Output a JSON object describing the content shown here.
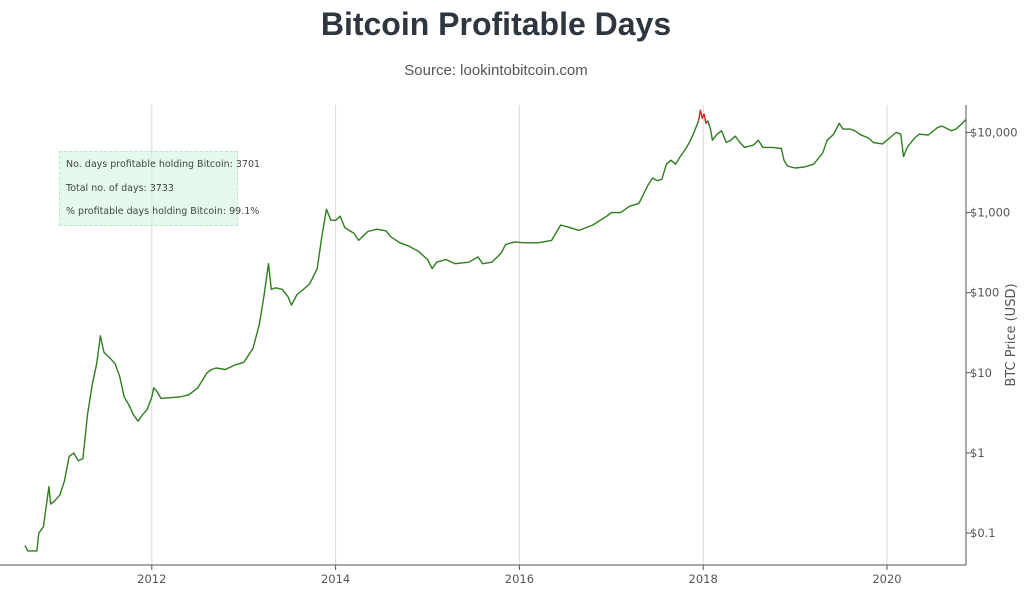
{
  "header": {
    "title": "Bitcoin Profitable Days",
    "subtitle": "Source: lookintobitcoin.com"
  },
  "annotation": {
    "line1": "No. days profitable holding Bitcoin: 3701",
    "line2": "Total no. of days: 3733",
    "line3": "% profitable days holding Bitcoin: 99.1%"
  },
  "colors": {
    "profitable": "#2e7d1f",
    "unprofitable": "#e02020",
    "grid": "#d9d9d9",
    "axis": "#555555"
  },
  "chart_data": {
    "type": "line",
    "title": "Bitcoin Profitable Days",
    "subtitle": "Source: lookintobitcoin.com",
    "xlabel": "",
    "ylabel": "BTC Price (USD)",
    "y_scale": "log",
    "y_axis_position": "right",
    "xlim": [
      2010.62,
      2020.86
    ],
    "ylim": [
      0.04,
      22000
    ],
    "x_ticks": [
      {
        "value": 2012,
        "label": "2012"
      },
      {
        "value": 2014,
        "label": "2014"
      },
      {
        "value": 2016,
        "label": "2016"
      },
      {
        "value": 2018,
        "label": "2018"
      },
      {
        "value": 2020,
        "label": "2020"
      }
    ],
    "y_ticks": [
      {
        "value": 0.1,
        "label": "$0.1"
      },
      {
        "value": 1,
        "label": "$1"
      },
      {
        "value": 10,
        "label": "$10"
      },
      {
        "value": 100,
        "label": "$100"
      },
      {
        "value": 1000,
        "label": "$1,000"
      },
      {
        "value": 10000,
        "label": "$10,000"
      }
    ],
    "grid": "vertical",
    "series": [
      {
        "color_key": "profitable",
        "points": [
          [
            2010.62,
            0.07
          ],
          [
            2010.65,
            0.06
          ],
          [
            2010.75,
            0.06
          ],
          [
            2010.77,
            0.1
          ],
          [
            2010.82,
            0.12
          ],
          [
            2010.86,
            0.26
          ],
          [
            2010.88,
            0.38
          ],
          [
            2010.9,
            0.23
          ],
          [
            2010.94,
            0.25
          ],
          [
            2011.0,
            0.3
          ],
          [
            2011.05,
            0.45
          ],
          [
            2011.1,
            0.9
          ],
          [
            2011.15,
            1.0
          ],
          [
            2011.2,
            0.8
          ],
          [
            2011.25,
            0.85
          ],
          [
            2011.3,
            3.0
          ],
          [
            2011.35,
            7.0
          ],
          [
            2011.4,
            13.0
          ],
          [
            2011.44,
            29.0
          ],
          [
            2011.48,
            18.0
          ],
          [
            2011.55,
            15.0
          ],
          [
            2011.6,
            13.0
          ],
          [
            2011.65,
            9.0
          ],
          [
            2011.7,
            5.0
          ],
          [
            2011.75,
            4.0
          ],
          [
            2011.8,
            3.0
          ],
          [
            2011.85,
            2.5
          ],
          [
            2011.9,
            3.0
          ],
          [
            2011.95,
            3.5
          ],
          [
            2012.0,
            5.0
          ],
          [
            2012.02,
            6.5
          ],
          [
            2012.05,
            6.0
          ],
          [
            2012.1,
            4.8
          ],
          [
            2012.2,
            4.9
          ],
          [
            2012.3,
            5.0
          ],
          [
            2012.4,
            5.3
          ],
          [
            2012.5,
            6.5
          ],
          [
            2012.6,
            10.0
          ],
          [
            2012.65,
            11.0
          ],
          [
            2012.7,
            11.5
          ],
          [
            2012.8,
            11.0
          ],
          [
            2012.9,
            12.5
          ],
          [
            2013.0,
            13.5
          ],
          [
            2013.1,
            20.0
          ],
          [
            2013.17,
            40.0
          ],
          [
            2013.22,
            90.0
          ],
          [
            2013.27,
            230.0
          ],
          [
            2013.3,
            110.0
          ],
          [
            2013.35,
            115.0
          ],
          [
            2013.42,
            110.0
          ],
          [
            2013.48,
            90.0
          ],
          [
            2013.52,
            70.0
          ],
          [
            2013.58,
            95.0
          ],
          [
            2013.65,
            110.0
          ],
          [
            2013.72,
            130.0
          ],
          [
            2013.8,
            200.0
          ],
          [
            2013.85,
            500.0
          ],
          [
            2013.9,
            1100.0
          ],
          [
            2013.95,
            800.0
          ],
          [
            2014.0,
            800.0
          ],
          [
            2014.05,
            900.0
          ],
          [
            2014.1,
            650.0
          ],
          [
            2014.2,
            550.0
          ],
          [
            2014.25,
            450.0
          ],
          [
            2014.35,
            580.0
          ],
          [
            2014.45,
            620.0
          ],
          [
            2014.55,
            590.0
          ],
          [
            2014.6,
            500.0
          ],
          [
            2014.7,
            420.0
          ],
          [
            2014.8,
            380.0
          ],
          [
            2014.9,
            330.0
          ],
          [
            2015.0,
            260.0
          ],
          [
            2015.05,
            200.0
          ],
          [
            2015.1,
            240.0
          ],
          [
            2015.2,
            260.0
          ],
          [
            2015.3,
            230.0
          ],
          [
            2015.45,
            240.0
          ],
          [
            2015.55,
            280.0
          ],
          [
            2015.6,
            230.0
          ],
          [
            2015.7,
            240.0
          ],
          [
            2015.8,
            310.0
          ],
          [
            2015.85,
            400.0
          ],
          [
            2015.95,
            430.0
          ],
          [
            2016.05,
            420.0
          ],
          [
            2016.2,
            420.0
          ],
          [
            2016.35,
            450.0
          ],
          [
            2016.45,
            700.0
          ],
          [
            2016.55,
            650.0
          ],
          [
            2016.65,
            600.0
          ],
          [
            2016.8,
            700.0
          ],
          [
            2016.95,
            900.0
          ],
          [
            2017.0,
            1000.0
          ],
          [
            2017.1,
            1000.0
          ],
          [
            2017.2,
            1200.0
          ],
          [
            2017.3,
            1300.0
          ],
          [
            2017.4,
            2200.0
          ],
          [
            2017.45,
            2700.0
          ],
          [
            2017.5,
            2500.0
          ],
          [
            2017.55,
            2600.0
          ],
          [
            2017.6,
            4000.0
          ],
          [
            2017.65,
            4500.0
          ],
          [
            2017.7,
            4000.0
          ],
          [
            2017.75,
            5000.0
          ],
          [
            2017.8,
            6000.0
          ],
          [
            2017.85,
            7500.0
          ],
          [
            2017.9,
            10000.0
          ],
          [
            2017.95,
            14000.0
          ]
        ]
      },
      {
        "color_key": "unprofitable",
        "points": [
          [
            2017.95,
            14000.0
          ],
          [
            2017.97,
            19000.0
          ],
          [
            2017.99,
            15000.0
          ],
          [
            2018.01,
            17000.0
          ],
          [
            2018.03,
            13000.0
          ],
          [
            2018.05,
            14000.0
          ]
        ]
      },
      {
        "color_key": "profitable",
        "points": [
          [
            2018.05,
            14000.0
          ],
          [
            2018.08,
            11000.0
          ],
          [
            2018.1,
            8000.0
          ],
          [
            2018.15,
            9500.0
          ],
          [
            2018.2,
            10500.0
          ],
          [
            2018.25,
            7500.0
          ],
          [
            2018.3,
            8000.0
          ],
          [
            2018.35,
            9000.0
          ],
          [
            2018.4,
            7500.0
          ],
          [
            2018.45,
            6500.0
          ],
          [
            2018.55,
            7000.0
          ],
          [
            2018.6,
            8000.0
          ],
          [
            2018.65,
            6500.0
          ],
          [
            2018.75,
            6500.0
          ],
          [
            2018.85,
            6300.0
          ],
          [
            2018.88,
            4500.0
          ],
          [
            2018.92,
            3800.0
          ],
          [
            2019.0,
            3600.0
          ],
          [
            2019.1,
            3700.0
          ],
          [
            2019.2,
            4000.0
          ],
          [
            2019.3,
            5500.0
          ],
          [
            2019.35,
            8000.0
          ],
          [
            2019.42,
            9500.0
          ],
          [
            2019.48,
            13000.0
          ],
          [
            2019.52,
            11000.0
          ],
          [
            2019.6,
            11000.0
          ],
          [
            2019.65,
            10500.0
          ],
          [
            2019.7,
            9500.0
          ],
          [
            2019.8,
            8500.0
          ],
          [
            2019.85,
            7500.0
          ],
          [
            2019.95,
            7200.0
          ],
          [
            2020.0,
            8000.0
          ],
          [
            2020.1,
            10000.0
          ],
          [
            2020.15,
            9500.0
          ],
          [
            2020.18,
            5000.0
          ],
          [
            2020.22,
            6500.0
          ],
          [
            2020.3,
            8500.0
          ],
          [
            2020.35,
            9500.0
          ],
          [
            2020.45,
            9300.0
          ],
          [
            2020.55,
            11500.0
          ],
          [
            2020.6,
            12000.0
          ],
          [
            2020.7,
            10500.0
          ],
          [
            2020.75,
            11000.0
          ],
          [
            2020.82,
            13000.0
          ],
          [
            2020.86,
            14500.0
          ]
        ]
      }
    ]
  }
}
